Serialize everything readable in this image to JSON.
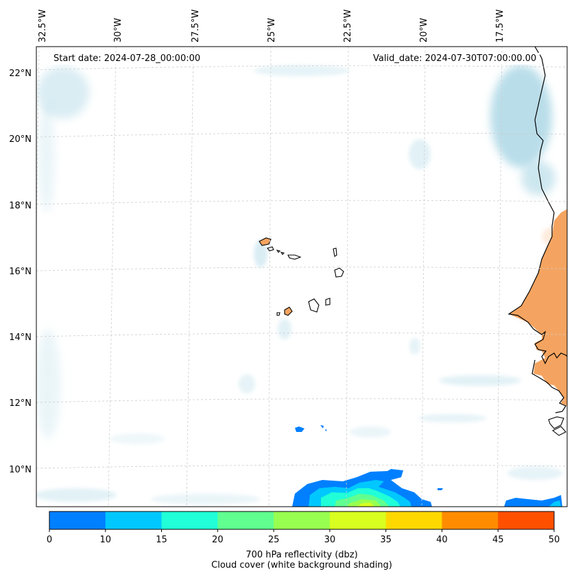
{
  "map": {
    "start_date_text": "Start date: 2024-07-28_00:00:00",
    "valid_date_text": "Valid_date: 2024-07-30T07:00:00.00",
    "lon_labels": [
      "32.5°W",
      "30°W",
      "27.5°W",
      "25°W",
      "22.5°W",
      "20°W",
      "17.5°W"
    ],
    "lat_labels": [
      "22°N",
      "20°N",
      "18°N",
      "16°N",
      "14°N",
      "12°N",
      "10°N"
    ]
  },
  "colorbar": {
    "ticks": [
      "0",
      "10",
      "15",
      "20",
      "25",
      "30",
      "35",
      "40",
      "45",
      "50"
    ],
    "colors": [
      "#0080ff",
      "#00c8ff",
      "#20ffd8",
      "#60ff90",
      "#98ff50",
      "#d8ff20",
      "#ffd800",
      "#ff8c00",
      "#ff5000"
    ],
    "title_line1": "700 hPa reflectivity (dbz)",
    "title_line2": "Cloud cover (white background shading)"
  },
  "style": {
    "land_color": "#f4a460",
    "cloud_color": "#add8e6",
    "ocean_color": "#ffffff"
  }
}
